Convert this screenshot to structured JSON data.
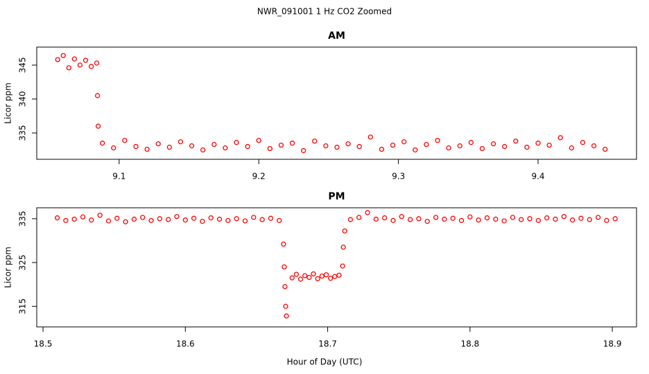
{
  "title": "NWR_091001  1 Hz CO2 Zoomed",
  "x_label": "Hour of Day (UTC)",
  "chart_data": [
    {
      "type": "scatter",
      "title": "AM",
      "y_label": "Licor ppm",
      "color": "#ff0000",
      "xlim": [
        9.041,
        9.4705
      ],
      "xticks": [
        9.1,
        9.2,
        9.3,
        9.4
      ],
      "ylim": [
        331.12,
        347.65
      ],
      "yticks": [
        335,
        340,
        345
      ],
      "x": [
        9.056,
        9.06,
        9.064,
        9.068,
        9.072,
        9.076,
        9.08,
        9.084,
        9.0845,
        9.085,
        9.088,
        9.096,
        9.104,
        9.112,
        9.12,
        9.128,
        9.136,
        9.144,
        9.152,
        9.16,
        9.168,
        9.176,
        9.184,
        9.192,
        9.2,
        9.208,
        9.216,
        9.224,
        9.232,
        9.24,
        9.248,
        9.256,
        9.264,
        9.272,
        9.28,
        9.288,
        9.296,
        9.304,
        9.312,
        9.32,
        9.328,
        9.336,
        9.344,
        9.352,
        9.36,
        9.368,
        9.376,
        9.384,
        9.392,
        9.4,
        9.408,
        9.416,
        9.424,
        9.432,
        9.44,
        9.448
      ],
      "values": [
        345.8,
        346.4,
        344.6,
        345.9,
        345.0,
        345.7,
        344.8,
        345.3,
        340.5,
        336.0,
        333.5,
        332.8,
        333.9,
        333.0,
        332.6,
        333.4,
        332.9,
        333.7,
        333.1,
        332.5,
        333.3,
        332.8,
        333.6,
        333.0,
        333.9,
        332.7,
        333.2,
        333.5,
        332.4,
        333.8,
        333.1,
        332.9,
        333.4,
        333.0,
        334.4,
        332.6,
        333.2,
        333.7,
        332.5,
        333.3,
        333.9,
        332.8,
        333.1,
        333.6,
        332.7,
        333.4,
        333.0,
        333.8,
        332.9,
        333.5,
        333.2,
        334.3,
        332.8,
        333.6,
        333.1,
        332.6
      ]
    },
    {
      "type": "scatter",
      "title": "PM",
      "y_label": "Licor ppm",
      "color": "#ff0000",
      "xlim": [
        18.4956,
        18.917
      ],
      "xticks": [
        18.5,
        18.6,
        18.7,
        18.8,
        18.9
      ],
      "ylim": [
        310.3,
        337.5
      ],
      "yticks": [
        315,
        325,
        335
      ],
      "x": [
        18.51,
        18.516,
        18.522,
        18.528,
        18.534,
        18.54,
        18.546,
        18.552,
        18.558,
        18.564,
        18.57,
        18.576,
        18.582,
        18.588,
        18.594,
        18.6,
        18.606,
        18.612,
        18.618,
        18.624,
        18.63,
        18.636,
        18.642,
        18.648,
        18.654,
        18.66,
        18.666,
        18.669,
        18.6695,
        18.67,
        18.6705,
        18.671,
        18.675,
        18.678,
        18.681,
        18.684,
        18.687,
        18.69,
        18.693,
        18.696,
        18.699,
        18.702,
        18.705,
        18.708,
        18.7105,
        18.711,
        18.712,
        18.716,
        18.722,
        18.728,
        18.734,
        18.74,
        18.746,
        18.752,
        18.758,
        18.764,
        18.77,
        18.776,
        18.782,
        18.788,
        18.794,
        18.8,
        18.806,
        18.812,
        18.818,
        18.824,
        18.83,
        18.836,
        18.842,
        18.848,
        18.854,
        18.86,
        18.866,
        18.872,
        18.878,
        18.884,
        18.89,
        18.896,
        18.902
      ],
      "values": [
        335.2,
        334.6,
        334.9,
        335.4,
        334.7,
        335.8,
        334.5,
        335.1,
        334.3,
        334.9,
        335.3,
        334.6,
        335.0,
        334.8,
        335.5,
        334.7,
        335.1,
        334.4,
        335.2,
        334.9,
        334.6,
        335.0,
        334.5,
        335.3,
        334.8,
        335.1,
        334.6,
        329.2,
        324.0,
        319.5,
        315.0,
        312.8,
        321.5,
        322.3,
        321.2,
        322.0,
        321.6,
        322.4,
        321.3,
        321.9,
        322.2,
        321.4,
        321.8,
        322.1,
        324.2,
        328.5,
        332.2,
        334.8,
        335.3,
        336.4,
        334.9,
        335.2,
        334.6,
        335.5,
        334.8,
        335.0,
        334.4,
        335.3,
        334.9,
        335.1,
        334.6,
        335.4,
        334.7,
        335.2,
        334.9,
        334.5,
        335.3,
        334.8,
        335.0,
        334.6,
        335.2,
        334.9,
        335.5,
        334.7,
        335.1,
        334.8,
        335.3,
        334.6,
        335.0
      ]
    }
  ]
}
